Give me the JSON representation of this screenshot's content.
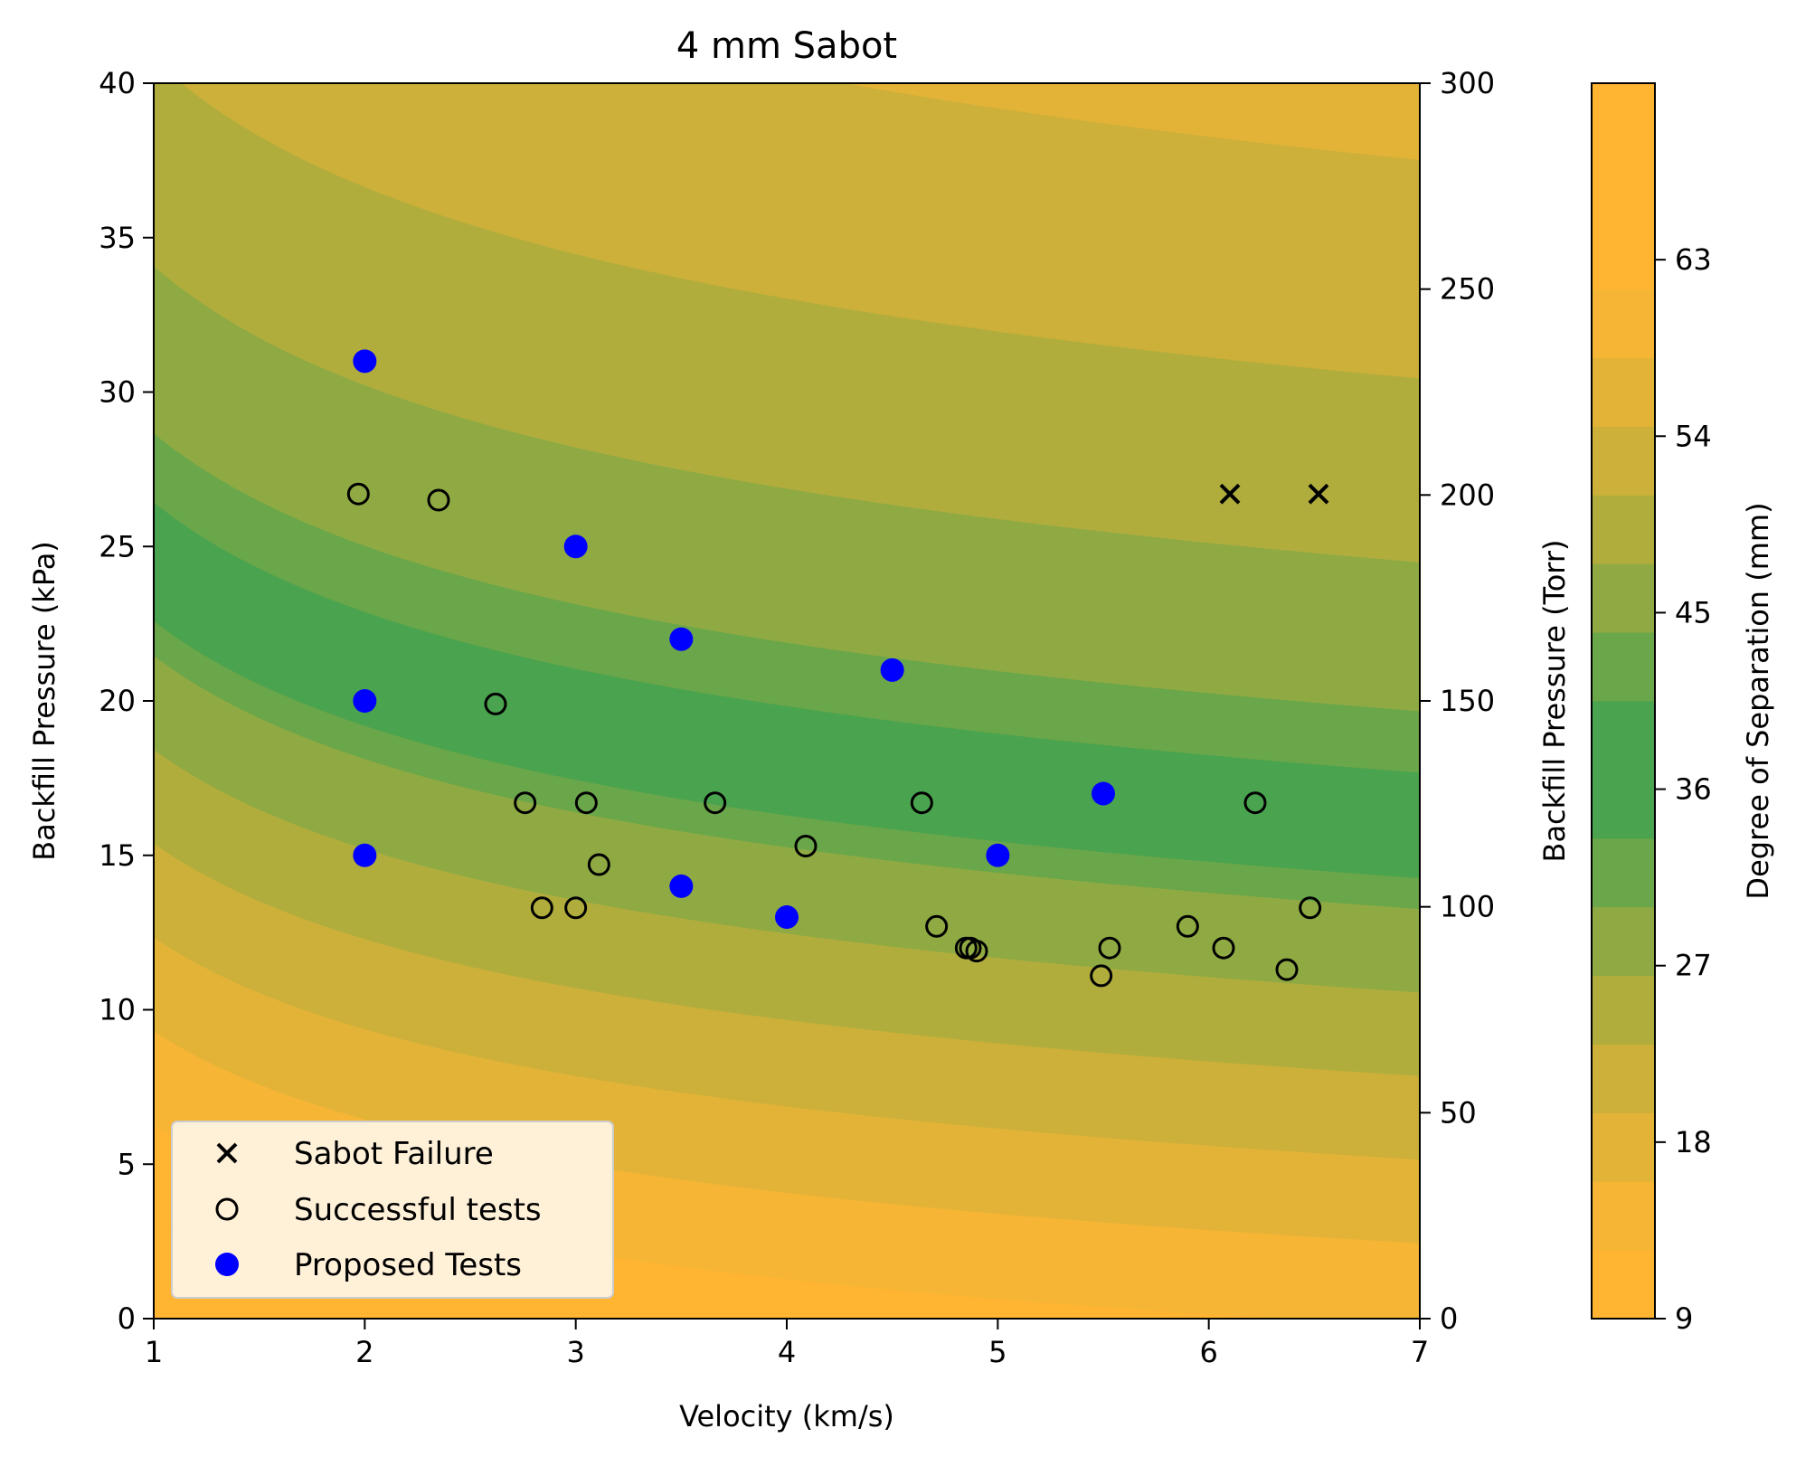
{
  "chart_data": {
    "type": "scatter",
    "title": "4 mm Sabot",
    "xlabel": "Velocity (km/s)",
    "ylabel": "Backfill Pressure (kPa)",
    "y2label": "Backfill Pressure (Torr)",
    "colorbar_label": "Degree of Separation (mm)",
    "xlim": [
      1,
      7
    ],
    "ylim": [
      0,
      40
    ],
    "y2lim": [
      0,
      300
    ],
    "colorbar_range": [
      9,
      72
    ],
    "x_ticks": [
      "1",
      "2",
      "3",
      "4",
      "5",
      "6",
      "7"
    ],
    "y_ticks": [
      "0",
      "5",
      "10",
      "15",
      "20",
      "25",
      "30",
      "35",
      "40"
    ],
    "y2_ticks": [
      "0",
      "50",
      "100",
      "150",
      "200",
      "250",
      "300"
    ],
    "colorbar_ticks": [
      "9",
      "18",
      "27",
      "36",
      "45",
      "54",
      "63"
    ],
    "grid": false,
    "legend_position": "lower-left",
    "background": "filled contour of degree of separation (mm); minimum (~36 mm, green) along a band from ~24 kPa at 1 km/s to ~16 kPa at 7 km/s, rising to orange (>63 mm) at low and high pressures",
    "colormap": [
      "#ffb432",
      "#f6b534",
      "#e3b338",
      "#ccb039",
      "#b1ad3d",
      "#8faa43",
      "#6aa64a",
      "#4aa34e"
    ],
    "series": [
      {
        "name": "Sabot Failure",
        "marker": "x",
        "color": "#000000",
        "x": [
          6.1,
          6.52
        ],
        "y": [
          26.7,
          26.7
        ]
      },
      {
        "name": "Successful tests",
        "marker": "open-circle",
        "color": "#000000",
        "x": [
          1.97,
          2.35,
          2.62,
          2.76,
          3.05,
          3.66,
          4.64,
          6.22,
          3.11,
          4.09,
          2.84,
          3.0,
          4.71,
          4.85,
          4.87,
          4.9,
          5.53,
          5.49,
          5.9,
          6.07,
          6.37,
          6.48
        ],
        "y": [
          26.7,
          26.5,
          19.9,
          16.7,
          16.7,
          16.7,
          16.7,
          16.7,
          14.7,
          15.3,
          13.3,
          13.3,
          12.7,
          12.0,
          12.0,
          11.9,
          12.0,
          11.1,
          12.7,
          12.0,
          11.3,
          13.3
        ]
      },
      {
        "name": "Proposed Tests",
        "marker": "filled-circle",
        "color": "#0000ff",
        "x": [
          2,
          2,
          2,
          3,
          3.5,
          3.5,
          4,
          4.5,
          5,
          5.5
        ],
        "y": [
          31,
          20,
          15,
          25,
          22,
          14,
          13,
          21,
          15,
          17
        ]
      }
    ]
  }
}
